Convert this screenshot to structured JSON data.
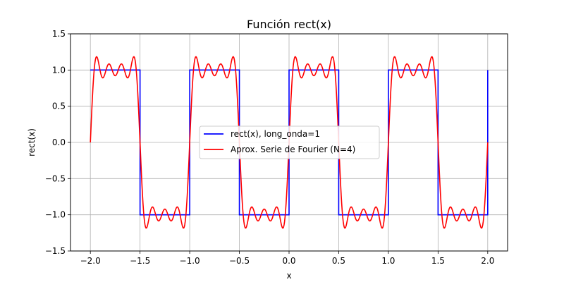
{
  "chart_data": {
    "type": "line",
    "title": "Función rect(x)",
    "xlabel": "x",
    "ylabel": "rect(x)",
    "xlim": [
      -2.2,
      2.2
    ],
    "ylim": [
      -1.5,
      1.5
    ],
    "xticks": [
      -2.0,
      -1.5,
      -1.0,
      -0.5,
      0.0,
      0.5,
      1.0,
      1.5,
      2.0
    ],
    "xtick_labels": [
      "−2.0",
      "−1.5",
      "−1.0",
      "−0.5",
      "0.0",
      "0.5",
      "1.0",
      "1.5",
      "2.0"
    ],
    "yticks": [
      -1.5,
      -1.0,
      -0.5,
      0.0,
      0.5,
      1.0,
      1.5
    ],
    "ytick_labels": [
      "−1.5",
      "−1.0",
      "−0.5",
      "0.0",
      "0.5",
      "1.0",
      "1.5"
    ],
    "grid": true,
    "legend_position": "center",
    "series": [
      {
        "name": "rect(x), long_onda=1",
        "color": "#0000ff",
        "x": [
          -2.0,
          -1.5,
          -1.5,
          -1.0,
          -1.0,
          -0.5,
          -0.5,
          0.0,
          0.0,
          0.5,
          0.5,
          1.0,
          1.0,
          1.5,
          1.5,
          2.0,
          2.0
        ],
        "y": [
          1,
          1,
          -1,
          -1,
          1,
          1,
          -1,
          -1,
          1,
          1,
          -1,
          -1,
          1,
          1,
          -1,
          -1,
          1
        ]
      },
      {
        "name": "Aprox. Serie de Fourier (N=4)",
        "color": "#ff0000",
        "x_range": [
          -2.0,
          2.0
        ],
        "harmonics": [
          1,
          3,
          5,
          7
        ]
      }
    ]
  }
}
